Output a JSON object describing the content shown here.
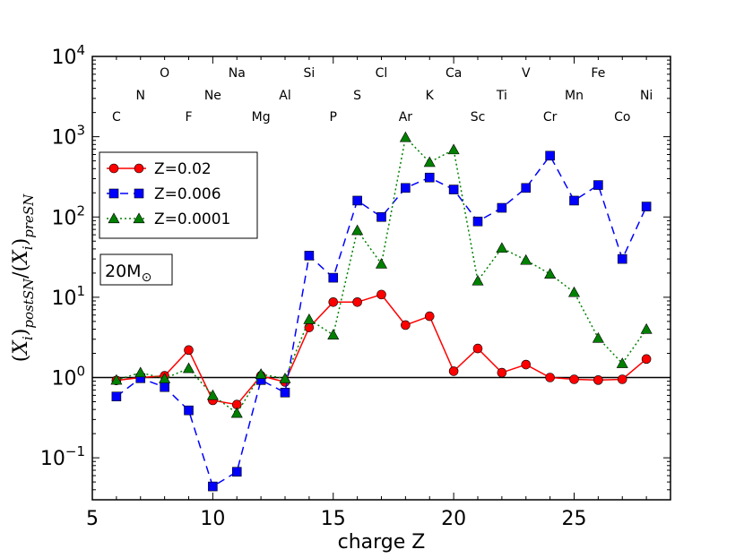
{
  "chart_data": {
    "type": "line",
    "xlabel": "charge Z",
    "ylabel_main": "(X",
    "ylabel_parts": {
      "var": "X",
      "sub_i": "i",
      "post": "postSN",
      "pre": "preSN"
    },
    "xlim": [
      5,
      29
    ],
    "ylim": [
      0.03,
      10000
    ],
    "yscale": "log",
    "x_ticks": [
      5,
      10,
      15,
      20,
      25
    ],
    "y_ticks": [
      {
        "value": 0.1,
        "base": "10",
        "exp": "−1"
      },
      {
        "value": 1,
        "base": "10",
        "exp": "0"
      },
      {
        "value": 10,
        "base": "10",
        "exp": "1"
      },
      {
        "value": 100,
        "base": "10",
        "exp": "2"
      },
      {
        "value": 1000,
        "base": "10",
        "exp": "3"
      },
      {
        "value": 10000,
        "base": "10",
        "exp": "4"
      }
    ],
    "reference_line": 1,
    "annotation": {
      "text": "20M",
      "symbol": "⊙"
    },
    "legend_placement": "upper-left",
    "elements": [
      {
        "z": 6,
        "symbol": "C"
      },
      {
        "z": 7,
        "symbol": "N"
      },
      {
        "z": 8,
        "symbol": "O"
      },
      {
        "z": 9,
        "symbol": "F"
      },
      {
        "z": 10,
        "symbol": "Ne"
      },
      {
        "z": 11,
        "symbol": "Na"
      },
      {
        "z": 12,
        "symbol": "Mg"
      },
      {
        "z": 13,
        "symbol": "Al"
      },
      {
        "z": 14,
        "symbol": "Si"
      },
      {
        "z": 15,
        "symbol": "P"
      },
      {
        "z": 16,
        "symbol": "S"
      },
      {
        "z": 17,
        "symbol": "Cl"
      },
      {
        "z": 18,
        "symbol": "Ar"
      },
      {
        "z": 19,
        "symbol": "K"
      },
      {
        "z": 20,
        "symbol": "Ca"
      },
      {
        "z": 21,
        "symbol": "Sc"
      },
      {
        "z": 22,
        "symbol": "Ti"
      },
      {
        "z": 23,
        "symbol": "V"
      },
      {
        "z": 24,
        "symbol": "Cr"
      },
      {
        "z": 25,
        "symbol": "Mn"
      },
      {
        "z": 26,
        "symbol": "Fe"
      },
      {
        "z": 27,
        "symbol": "Co"
      },
      {
        "z": 28,
        "symbol": "Ni"
      }
    ],
    "x": [
      6,
      7,
      8,
      9,
      10,
      11,
      12,
      13,
      14,
      15,
      16,
      17,
      18,
      19,
      20,
      21,
      22,
      23,
      24,
      25,
      26,
      27,
      28
    ],
    "series": [
      {
        "name": "Z=0.02",
        "color": "#ff0000",
        "marker": "circle",
        "linestyle": "solid",
        "values": [
          0.92,
          1.0,
          1.05,
          2.2,
          0.52,
          0.46,
          1.05,
          0.88,
          4.2,
          8.7,
          8.7,
          10.8,
          4.5,
          5.8,
          1.2,
          2.3,
          1.15,
          1.45,
          1.0,
          0.95,
          0.93,
          0.95,
          1.7
        ]
      },
      {
        "name": "Z=0.006",
        "color": "#0000ff",
        "marker": "square",
        "linestyle": "dashed",
        "values": [
          0.58,
          0.98,
          0.76,
          0.39,
          0.044,
          0.067,
          0.93,
          0.65,
          33,
          17.5,
          160,
          100,
          230,
          310,
          220,
          88,
          130,
          230,
          580,
          160,
          250,
          30,
          135
        ]
      },
      {
        "name": "Z=0.0001",
        "color": "#008000",
        "marker": "triangle",
        "linestyle": "dotted",
        "values": [
          0.93,
          1.15,
          0.97,
          1.3,
          0.6,
          0.36,
          1.1,
          0.97,
          5.3,
          3.4,
          68,
          26,
          980,
          480,
          690,
          16,
          41,
          29,
          19.5,
          11.5,
          3.1,
          1.5,
          4.0
        ]
      }
    ]
  }
}
